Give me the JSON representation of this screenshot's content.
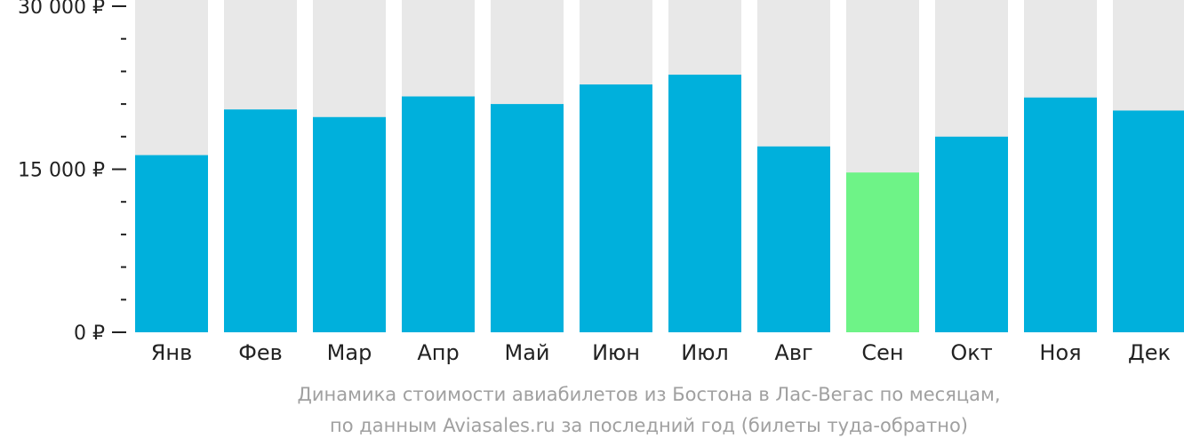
{
  "chart_data": {
    "type": "bar",
    "categories": [
      "Янв",
      "Фев",
      "Мар",
      "Апр",
      "Май",
      "Июн",
      "Июл",
      "Авг",
      "Сен",
      "Окт",
      "Ноя",
      "Дек"
    ],
    "values": [
      16300,
      20500,
      19800,
      21700,
      21000,
      22800,
      23700,
      17100,
      14700,
      18000,
      21600,
      20400
    ],
    "ylim": [
      0,
      30000
    ],
    "yticks": [
      {
        "value": 0,
        "label": "0 ₽"
      },
      {
        "value": 15000,
        "label": "15 000 ₽"
      },
      {
        "value": 30000,
        "label": "30 000 ₽"
      }
    ],
    "minor_tick_step": 3000,
    "highlight_index": 8,
    "grid": false,
    "legend": "none",
    "colors": {
      "bar": "#00b0dc",
      "highlight": "#6ef387",
      "background_bar": "#e8e8e8",
      "axis": "#222222"
    }
  },
  "caption": {
    "line1": "Динамика стоимости авиабилетов из Бостона в Лас-Вегас по месяцам,",
    "line2": "по данным Aviasales.ru за последний год (билеты туда-обратно)"
  }
}
